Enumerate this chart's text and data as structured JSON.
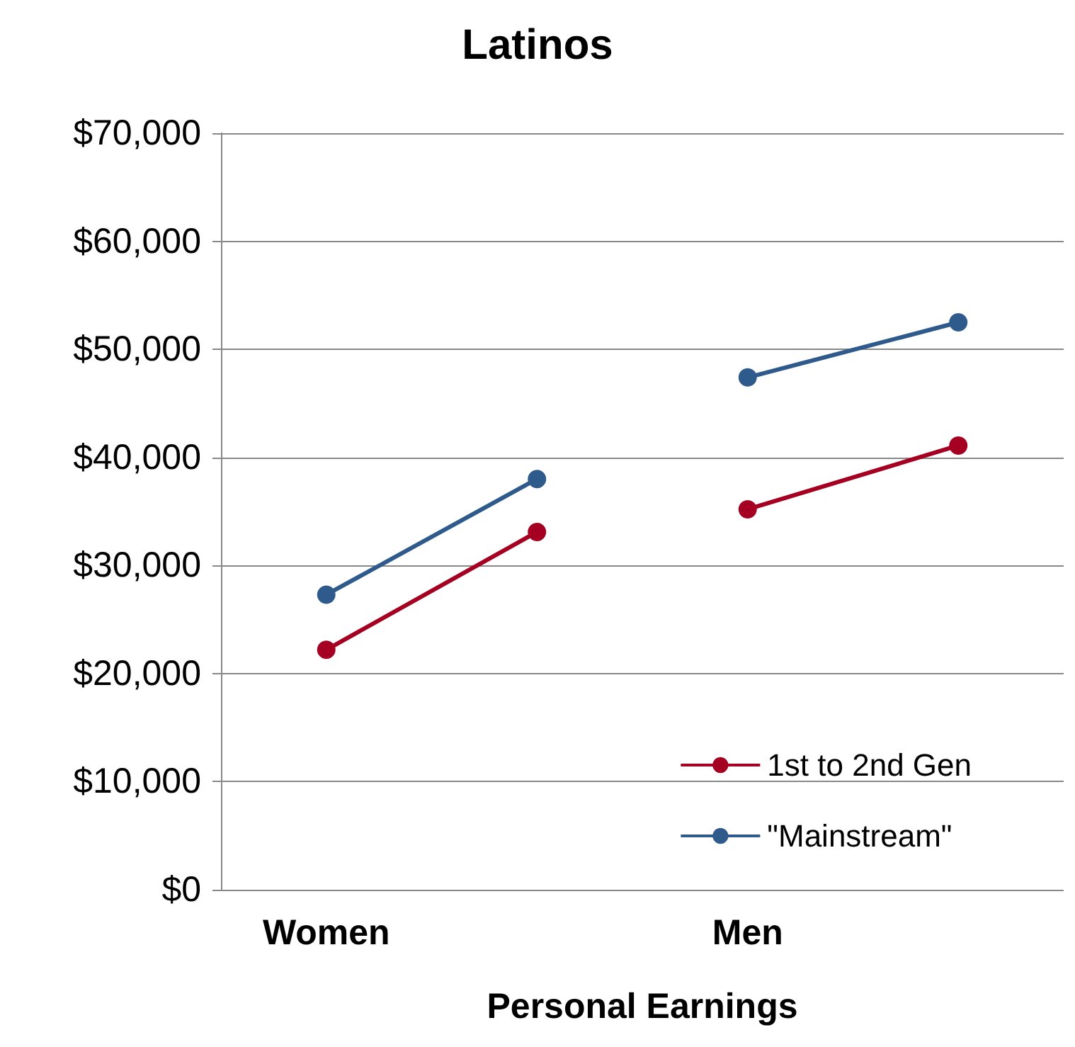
{
  "chart_data": {
    "type": "line",
    "title": "Latinos",
    "xlabel": "Personal Earnings",
    "categories": [
      "Women",
      null,
      "Men",
      null
    ],
    "series": [
      {
        "name": "1st to 2nd Gen",
        "color": "#a50021",
        "values": [
          22200,
          33100,
          null,
          null
        ]
      },
      {
        "color": "#a50021",
        "values": [
          null,
          null,
          35200,
          41100
        ]
      },
      {
        "name": "\"Mainstream\"",
        "color": "#2e5a8c",
        "values": [
          27300,
          38000,
          null,
          null
        ]
      },
      {
        "color": "#2e5a8c",
        "values": [
          null,
          null,
          47400,
          52500
        ]
      }
    ],
    "ylim": [
      0,
      70000
    ],
    "yticks": [
      {
        "value": 0,
        "label": "$0"
      },
      {
        "value": 10000,
        "label": "$10,000"
      },
      {
        "value": 20000,
        "label": "$20,000"
      },
      {
        "value": 30000,
        "label": "$30,000"
      },
      {
        "value": 40000,
        "label": "$40,000"
      },
      {
        "value": 50000,
        "label": "$50,000"
      },
      {
        "value": 60000,
        "label": "$60,000"
      },
      {
        "value": 70000,
        "label": "$70,000"
      }
    ],
    "grid": "y",
    "legend": "bottom right",
    "marker": "circle",
    "line_style": "solid"
  }
}
